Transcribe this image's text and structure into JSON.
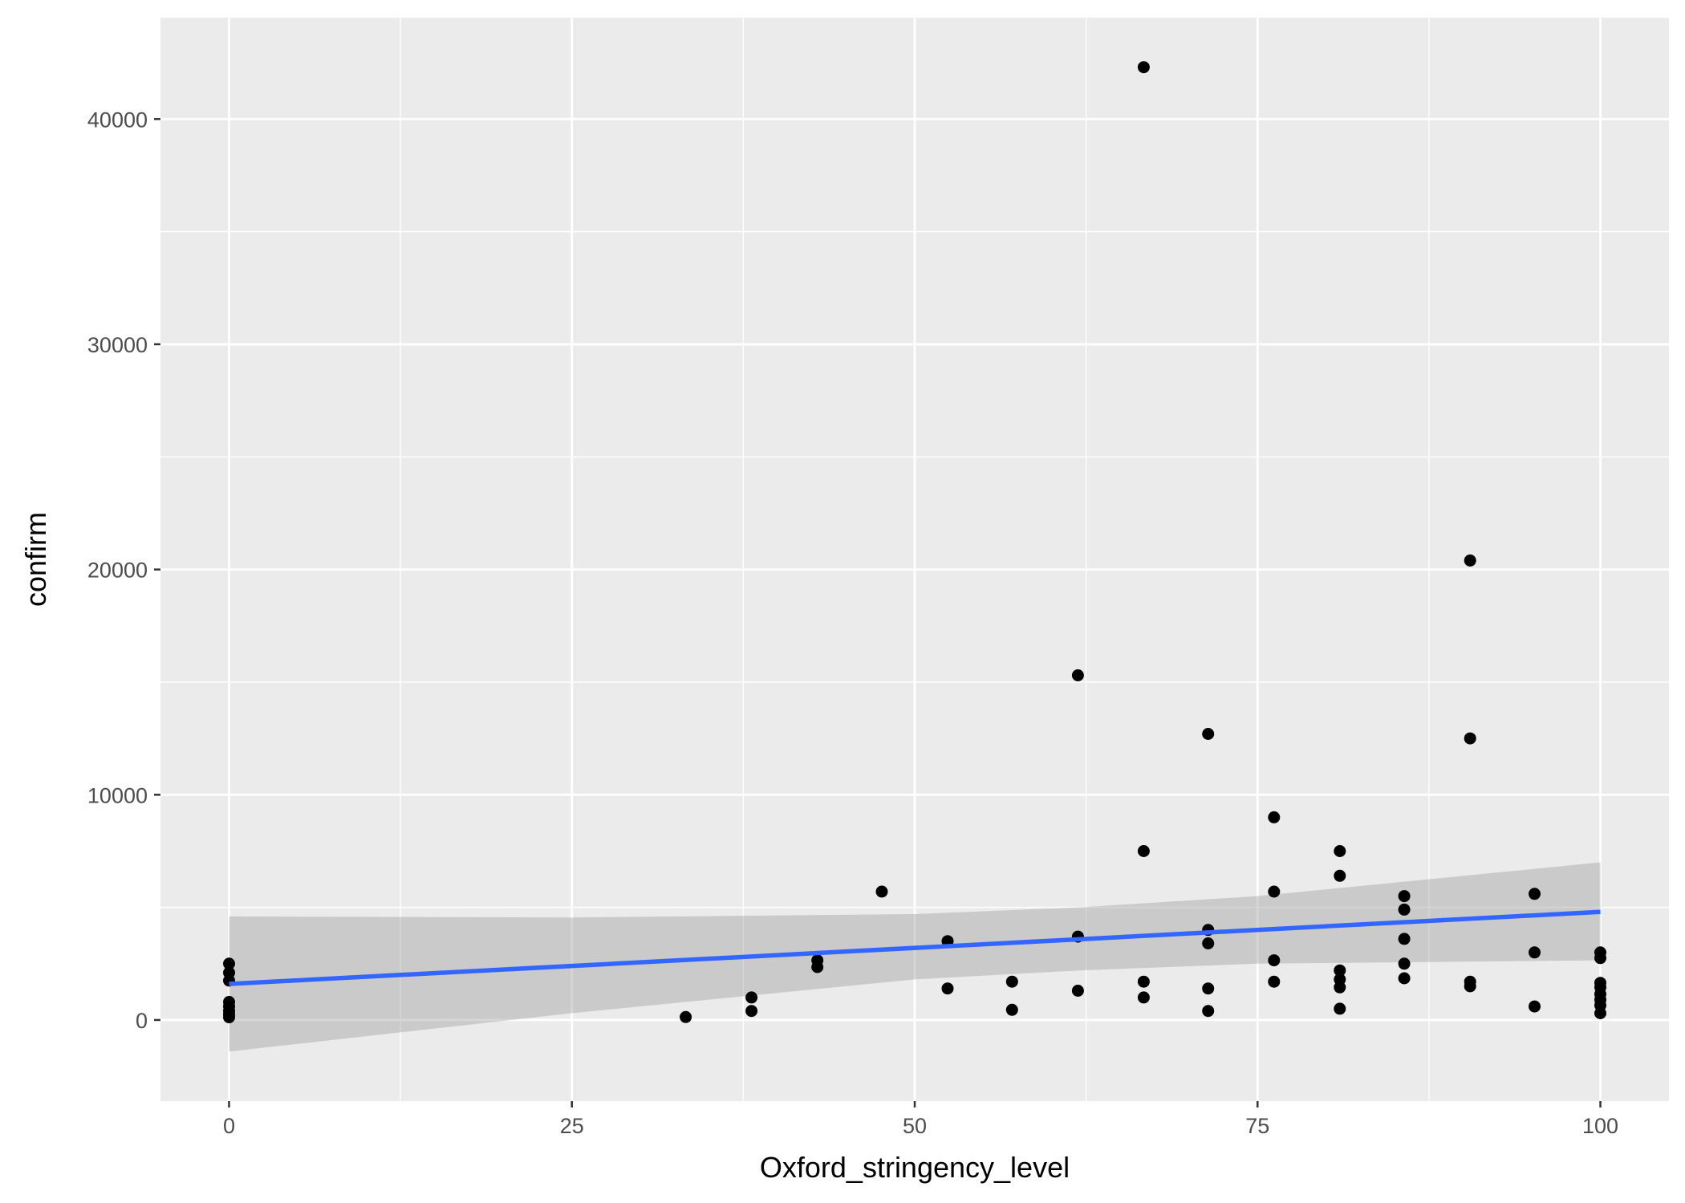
{
  "chart_data": {
    "type": "scatter",
    "title": "",
    "xlabel": "Oxford_stringency_level",
    "ylabel": "confirm",
    "xlim": [
      -5,
      105
    ],
    "ylim": [
      -3600,
      44500
    ],
    "x_ticks": [
      0,
      25,
      50,
      75,
      100
    ],
    "x_tick_labels": [
      "0",
      "25",
      "50",
      "75",
      "100"
    ],
    "y_ticks": [
      0,
      10000,
      20000,
      30000,
      40000
    ],
    "y_tick_labels": [
      "0",
      "10000",
      "20000",
      "30000",
      "40000"
    ],
    "grid": true,
    "legend": "none",
    "colors": {
      "panel": "#ebebeb",
      "grid": "#ffffff",
      "points": "#000000",
      "fit_line": "#3366ff",
      "ribbon": "#999999"
    },
    "points": [
      {
        "x": 0,
        "y": 2500
      },
      {
        "x": 0,
        "y": 2100
      },
      {
        "x": 0,
        "y": 1750
      },
      {
        "x": 0,
        "y": 800
      },
      {
        "x": 0,
        "y": 600
      },
      {
        "x": 0,
        "y": 400
      },
      {
        "x": 0,
        "y": 250
      },
      {
        "x": 0,
        "y": 120
      },
      {
        "x": 33.3,
        "y": 130
      },
      {
        "x": 38.1,
        "y": 1000
      },
      {
        "x": 38.1,
        "y": 400
      },
      {
        "x": 42.9,
        "y": 2650
      },
      {
        "x": 42.9,
        "y": 2350
      },
      {
        "x": 47.6,
        "y": 5700
      },
      {
        "x": 52.4,
        "y": 3500
      },
      {
        "x": 52.4,
        "y": 1400
      },
      {
        "x": 57.1,
        "y": 1700
      },
      {
        "x": 57.1,
        "y": 450
      },
      {
        "x": 61.9,
        "y": 15300
      },
      {
        "x": 61.9,
        "y": 3700
      },
      {
        "x": 61.9,
        "y": 1300
      },
      {
        "x": 66.7,
        "y": 42300
      },
      {
        "x": 66.7,
        "y": 7500
      },
      {
        "x": 66.7,
        "y": 1700
      },
      {
        "x": 66.7,
        "y": 1000
      },
      {
        "x": 71.4,
        "y": 12700
      },
      {
        "x": 71.4,
        "y": 4000
      },
      {
        "x": 71.4,
        "y": 3400
      },
      {
        "x": 71.4,
        "y": 1400
      },
      {
        "x": 71.4,
        "y": 400
      },
      {
        "x": 76.2,
        "y": 9000
      },
      {
        "x": 76.2,
        "y": 5700
      },
      {
        "x": 76.2,
        "y": 2650
      },
      {
        "x": 76.2,
        "y": 1700
      },
      {
        "x": 81,
        "y": 7500
      },
      {
        "x": 81,
        "y": 6400
      },
      {
        "x": 81,
        "y": 2200
      },
      {
        "x": 81,
        "y": 1800
      },
      {
        "x": 81,
        "y": 1450
      },
      {
        "x": 81,
        "y": 500
      },
      {
        "x": 85.7,
        "y": 5500
      },
      {
        "x": 85.7,
        "y": 4900
      },
      {
        "x": 85.7,
        "y": 3600
      },
      {
        "x": 85.7,
        "y": 2500
      },
      {
        "x": 85.7,
        "y": 1850
      },
      {
        "x": 90.5,
        "y": 20400
      },
      {
        "x": 90.5,
        "y": 12500
      },
      {
        "x": 90.5,
        "y": 1700
      },
      {
        "x": 90.5,
        "y": 1500
      },
      {
        "x": 95.2,
        "y": 5600
      },
      {
        "x": 95.2,
        "y": 3000
      },
      {
        "x": 95.2,
        "y": 600
      },
      {
        "x": 100,
        "y": 3000
      },
      {
        "x": 100,
        "y": 2750
      },
      {
        "x": 100,
        "y": 1650
      },
      {
        "x": 100,
        "y": 1450
      },
      {
        "x": 100,
        "y": 1150
      },
      {
        "x": 100,
        "y": 900
      },
      {
        "x": 100,
        "y": 650
      },
      {
        "x": 100,
        "y": 300
      }
    ],
    "fit_line": {
      "x": [
        0,
        100
      ],
      "y": [
        1600,
        4800
      ]
    },
    "confidence_band": {
      "x": [
        0,
        25,
        50,
        62,
        75,
        100
      ],
      "lower": [
        -1400,
        300,
        1800,
        2200,
        2500,
        2650
      ],
      "upper": [
        4600,
        4550,
        4700,
        5000,
        5500,
        7000
      ]
    }
  }
}
